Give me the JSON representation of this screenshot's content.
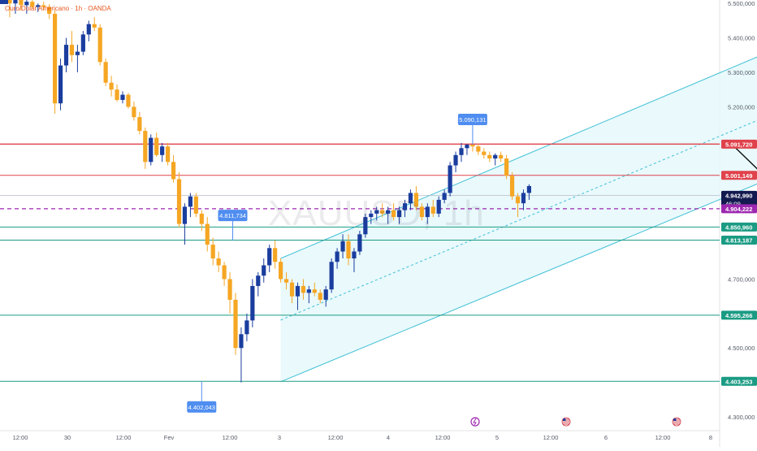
{
  "header": {
    "symbol_title": "Ouro/Dolar Americano · 1h · OANDA"
  },
  "watermark": "XAUUSD, 1h",
  "colors": {
    "bull": "#1a3d9e",
    "bear": "#f5a623",
    "channel_line": "#3fc0d6",
    "channel_fill": "#e4f7fb",
    "resistance": "#e0424b",
    "support": "#1a9b83",
    "current_price": "#9c27b0",
    "arrow": "#111111"
  },
  "chart_data": {
    "type": "candlestick",
    "timeframe": "1h",
    "x_ticks": [
      "12:00",
      "30",
      "12:00",
      "Fev",
      "12:00",
      "3",
      "12:00",
      "4",
      "12:00",
      "5",
      "12:00",
      "6",
      "12:00",
      "8"
    ],
    "y_ticks": [
      "5.500,000",
      "5.400,000",
      "5.300,000",
      "5.200,000",
      "4.700,000",
      "4.500,000",
      "4.300,000"
    ],
    "y_range": [
      4260,
      5510
    ],
    "price_levels": [
      {
        "label": "5.091,720",
        "value": 5091.72,
        "kind": "resistance"
      },
      {
        "label": "5.001,149",
        "value": 5001.149,
        "kind": "resistance"
      },
      {
        "label": "4.850,960",
        "value": 4850.96,
        "kind": "support"
      },
      {
        "label": "4.813,187",
        "value": 4813.187,
        "kind": "support"
      },
      {
        "label": "4.595,266",
        "value": 4595.266,
        "kind": "support"
      },
      {
        "label": "4.403,253",
        "value": 4403.253,
        "kind": "support"
      }
    ],
    "current_price": {
      "label": "4.942,990",
      "value": 4942.99,
      "countdown": "46:09"
    },
    "dashed_level": {
      "label": "4.904,222",
      "value": 4904.222
    },
    "callouts": [
      {
        "label": "5.090,131",
        "value": 5090.131
      },
      {
        "label": "4.811,734",
        "value": 4811.734
      },
      {
        "label": "4.402,043",
        "value": 4402.043
      }
    ],
    "channel": {
      "start_index": 48,
      "end_index": 144,
      "lower": [
        4402,
        5055
      ],
      "upper": [
        4760,
        5425
      ]
    },
    "projection": [
      [
        5090,
        128
      ],
      [
        4868,
        142
      ],
      [
        4993,
        148
      ],
      [
        4901,
        157
      ],
      [
        5080,
        168
      ]
    ],
    "candles": [
      [
        0,
        5520,
        5535,
        5460,
        5500
      ],
      [
        1,
        5500,
        5545,
        5470,
        5530
      ],
      [
        2,
        5530,
        5540,
        5480,
        5495
      ],
      [
        3,
        5495,
        5510,
        5470,
        5505
      ],
      [
        4,
        5505,
        5515,
        5485,
        5490
      ],
      [
        5,
        5490,
        5500,
        5475,
        5495
      ],
      [
        6,
        5495,
        5505,
        5480,
        5490
      ],
      [
        7,
        5490,
        5498,
        5455,
        5470
      ],
      [
        8,
        5470,
        5480,
        5180,
        5210
      ],
      [
        9,
        5210,
        5340,
        5190,
        5320
      ],
      [
        10,
        5320,
        5400,
        5300,
        5380
      ],
      [
        11,
        5380,
        5420,
        5330,
        5350
      ],
      [
        12,
        5350,
        5380,
        5300,
        5360
      ],
      [
        13,
        5360,
        5420,
        5350,
        5410
      ],
      [
        14,
        5410,
        5450,
        5390,
        5440
      ],
      [
        15,
        5440,
        5460,
        5420,
        5430
      ],
      [
        16,
        5430,
        5440,
        5320,
        5330
      ],
      [
        17,
        5330,
        5340,
        5260,
        5270
      ],
      [
        18,
        5270,
        5290,
        5230,
        5250
      ],
      [
        19,
        5250,
        5265,
        5215,
        5220
      ],
      [
        20,
        5220,
        5245,
        5210,
        5235
      ],
      [
        21,
        5235,
        5240,
        5195,
        5200
      ],
      [
        22,
        5200,
        5215,
        5160,
        5170
      ],
      [
        23,
        5170,
        5185,
        5120,
        5130
      ],
      [
        24,
        5130,
        5140,
        5020,
        5040
      ],
      [
        25,
        5040,
        5120,
        5030,
        5110
      ],
      [
        26,
        5110,
        5125,
        5055,
        5060
      ],
      [
        27,
        5060,
        5095,
        5040,
        5085
      ],
      [
        28,
        5085,
        5095,
        5030,
        5040
      ],
      [
        29,
        5040,
        5060,
        4980,
        4990
      ],
      [
        30,
        4990,
        5010,
        4850,
        4860
      ],
      [
        31,
        4860,
        4920,
        4800,
        4910
      ],
      [
        32,
        4910,
        4950,
        4880,
        4940
      ],
      [
        33,
        4940,
        4950,
        4880,
        4890
      ],
      [
        34,
        4890,
        4900,
        4840,
        4860
      ],
      [
        35,
        4860,
        4880,
        4780,
        4800
      ],
      [
        36,
        4800,
        4820,
        4740,
        4760
      ],
      [
        37,
        4760,
        4780,
        4720,
        4740
      ],
      [
        38,
        4740,
        4750,
        4680,
        4700
      ],
      [
        39,
        4700,
        4720,
        4600,
        4640
      ],
      [
        40,
        4640,
        4660,
        4480,
        4500
      ],
      [
        41,
        4500,
        4560,
        4400,
        4540
      ],
      [
        42,
        4540,
        4600,
        4520,
        4580
      ],
      [
        43,
        4580,
        4700,
        4560,
        4680
      ],
      [
        44,
        4680,
        4720,
        4650,
        4710
      ],
      [
        45,
        4710,
        4760,
        4690,
        4740
      ],
      [
        46,
        4740,
        4800,
        4720,
        4790
      ],
      [
        47,
        4790,
        4812,
        4730,
        4750
      ],
      [
        48,
        4750,
        4760,
        4690,
        4700
      ],
      [
        49,
        4700,
        4720,
        4670,
        4690
      ],
      [
        50,
        4690,
        4700,
        4630,
        4650
      ],
      [
        51,
        4650,
        4690,
        4610,
        4680
      ],
      [
        52,
        4680,
        4700,
        4640,
        4660
      ],
      [
        53,
        4660,
        4680,
        4630,
        4670
      ],
      [
        54,
        4670,
        4690,
        4650,
        4660
      ],
      [
        55,
        4660,
        4670,
        4630,
        4640
      ],
      [
        56,
        4640,
        4680,
        4620,
        4670
      ],
      [
        57,
        4670,
        4760,
        4660,
        4750
      ],
      [
        58,
        4750,
        4790,
        4730,
        4780
      ],
      [
        59,
        4780,
        4830,
        4760,
        4810
      ],
      [
        60,
        4810,
        4830,
        4740,
        4760
      ],
      [
        61,
        4760,
        4790,
        4720,
        4780
      ],
      [
        62,
        4780,
        4840,
        4770,
        4830
      ],
      [
        63,
        4830,
        4890,
        4820,
        4880
      ],
      [
        64,
        4880,
        4900,
        4860,
        4890
      ],
      [
        65,
        4890,
        4910,
        4870,
        4900
      ],
      [
        66,
        4900,
        4920,
        4880,
        4890
      ],
      [
        67,
        4890,
        4910,
        4860,
        4900
      ],
      [
        68,
        4900,
        4920,
        4870,
        4880
      ],
      [
        69,
        4880,
        4910,
        4860,
        4900
      ],
      [
        70,
        4900,
        4930,
        4880,
        4920
      ],
      [
        71,
        4920,
        4960,
        4900,
        4950
      ],
      [
        72,
        4950,
        4970,
        4900,
        4910
      ],
      [
        73,
        4910,
        4920,
        4870,
        4880
      ],
      [
        74,
        4880,
        4920,
        4860,
        4910
      ],
      [
        75,
        4910,
        4930,
        4880,
        4890
      ],
      [
        76,
        4890,
        4940,
        4880,
        4930
      ],
      [
        77,
        4930,
        4960,
        4920,
        4950
      ],
      [
        78,
        4950,
        5040,
        4940,
        5030
      ],
      [
        79,
        5030,
        5070,
        5010,
        5060
      ],
      [
        80,
        5060,
        5095,
        5040,
        5080
      ],
      [
        81,
        5080,
        5092,
        5060,
        5090
      ],
      [
        82,
        5090,
        5095,
        5070,
        5085
      ],
      [
        83,
        5085,
        5092,
        5060,
        5070
      ],
      [
        84,
        5070,
        5080,
        5050,
        5060
      ],
      [
        85,
        5060,
        5070,
        5040,
        5050
      ],
      [
        86,
        5050,
        5065,
        5030,
        5060
      ],
      [
        87,
        5060,
        5070,
        5040,
        5050
      ],
      [
        88,
        5050,
        5060,
        4990,
        5000
      ],
      [
        89,
        5000,
        5010,
        4930,
        4940
      ],
      [
        90,
        4940,
        4950,
        4880,
        4920
      ],
      [
        91,
        4920,
        4960,
        4900,
        4950
      ],
      [
        92,
        4950,
        4975,
        4930,
        4970
      ]
    ]
  }
}
